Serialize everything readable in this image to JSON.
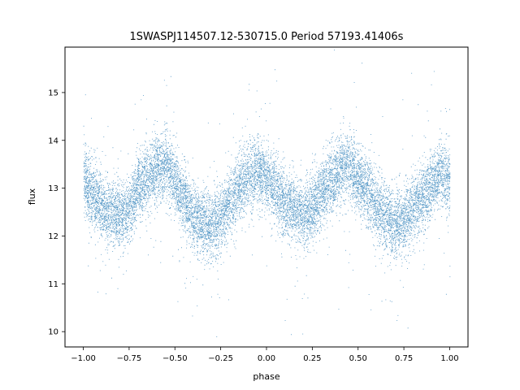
{
  "chart_data": {
    "type": "scatter",
    "title": "1SWASPJ114507.12-530715.0 Period 57193.41406s",
    "xlabel": "phase",
    "ylabel": "flux",
    "xlim": [
      -1.1,
      1.1
    ],
    "ylim": [
      9.68,
      15.95
    ],
    "xticks": [
      -1.0,
      -0.75,
      -0.5,
      -0.25,
      0.0,
      0.25,
      0.5,
      0.75,
      1.0
    ],
    "xtick_labels": [
      "−1.00",
      "−0.75",
      "−0.50",
      "−0.25",
      "0.00",
      "0.25",
      "0.50",
      "0.75",
      "1.00"
    ],
    "yticks": [
      10,
      11,
      12,
      13,
      14,
      15
    ],
    "ytick_labels": [
      "10",
      "11",
      "12",
      "13",
      "14",
      "15"
    ],
    "grid": false,
    "marker_color": "#1f77b4",
    "series": [
      {
        "model_curve": {
          "x": [
            -1.0,
            -0.9,
            -0.8,
            -0.75,
            -0.7,
            -0.6,
            -0.55,
            -0.5,
            -0.4,
            -0.3,
            -0.25,
            -0.2,
            -0.1,
            -0.05,
            0.0,
            0.1,
            0.2,
            0.25,
            0.3,
            0.4,
            0.45,
            0.5,
            0.6,
            0.7,
            0.75,
            0.8,
            0.9,
            0.95,
            1.0
          ],
          "y": [
            13.2,
            12.6,
            12.4,
            12.6,
            13.0,
            13.45,
            13.5,
            13.1,
            12.4,
            12.2,
            12.4,
            12.7,
            13.25,
            13.4,
            13.2,
            12.7,
            12.45,
            12.55,
            12.9,
            13.4,
            13.5,
            13.2,
            12.6,
            12.25,
            12.3,
            12.6,
            13.1,
            13.3,
            13.2
          ]
        },
        "scatter_sigma": 0.35,
        "n_points": 14000
      }
    ]
  }
}
